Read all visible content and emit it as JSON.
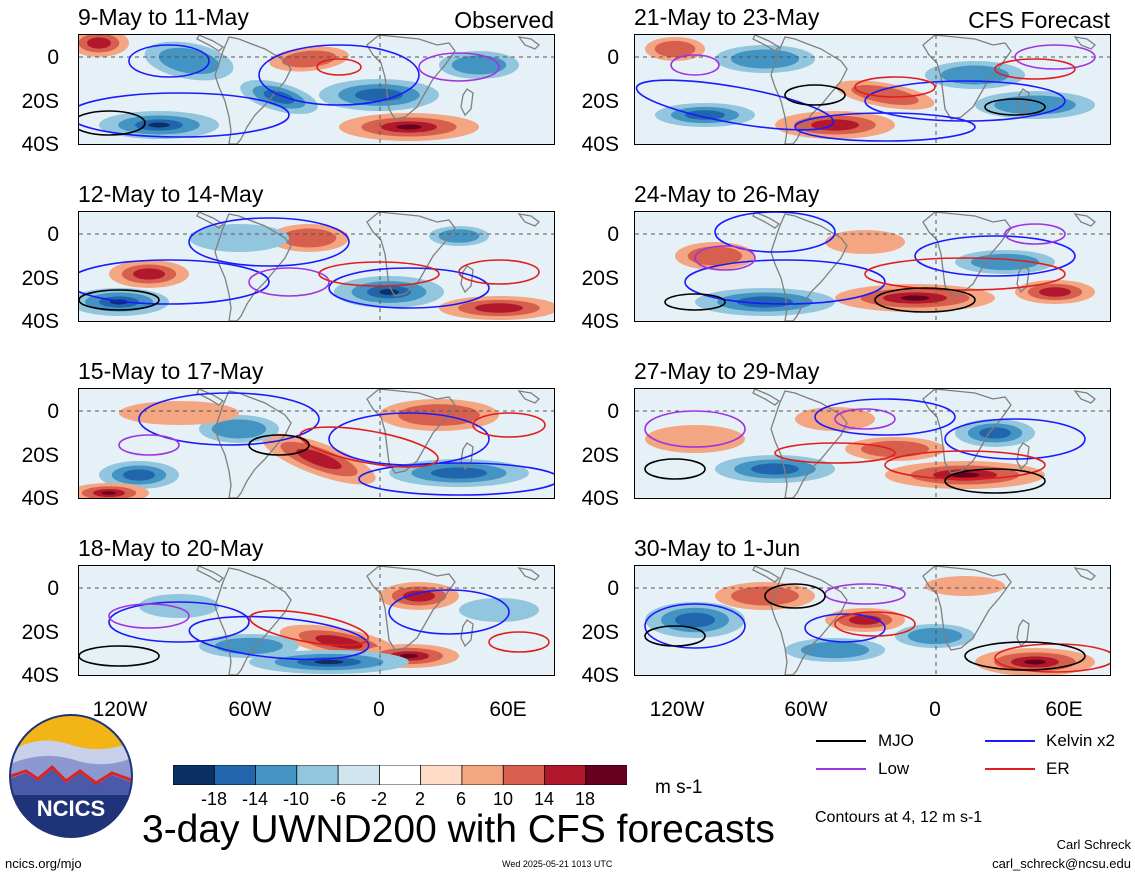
{
  "colors": {
    "mjo": "#000000",
    "kelvin": "#1a1aff",
    "low": "#a033e0",
    "er": "#e01e1e",
    "land": "#7f7f7f",
    "equator": "#555555"
  },
  "headers": {
    "left": "Observed",
    "right": "CFS Forecast"
  },
  "observed_panels": [
    {
      "title": "9-May to 11-May"
    },
    {
      "title": "12-May to 14-May"
    },
    {
      "title": "15-May to 17-May"
    },
    {
      "title": "18-May to 20-May"
    }
  ],
  "forecast_panels": [
    {
      "title": "21-May to 23-May"
    },
    {
      "title": "24-May to 26-May"
    },
    {
      "title": "27-May to 29-May"
    },
    {
      "title": "30-May to 1-Jun"
    }
  ],
  "lat_labels": [
    "0",
    "20S",
    "40S"
  ],
  "lon_labels": [
    "120W",
    "60W",
    "0",
    "60E"
  ],
  "colorbar": {
    "colors": [
      "#0a3064",
      "#2166ac",
      "#4393c3",
      "#92c5de",
      "#d1e5f0",
      "#ffffff",
      "#fddbc7",
      "#f4a582",
      "#d6604d",
      "#b2182b",
      "#67001f"
    ],
    "labels": [
      "-18",
      "-14",
      "-10",
      "-6",
      "-2",
      "2",
      "6",
      "10",
      "14",
      "18"
    ],
    "units": "m s-1"
  },
  "legend": {
    "mjo": "MJO",
    "kelvin": "Kelvin x2",
    "low": "Low",
    "er": "ER"
  },
  "contour_note": "Contours at 4, 12 m s-1",
  "main_title": "3-day UWND200 with CFS forecasts",
  "logo_text": "NCICS",
  "footer": {
    "url": "ncics.org/mjo",
    "timestamp": "Wed 2025-05-21 1013 UTC",
    "author": "Carl Schreck",
    "email": "carl_schreck@ncsu.edu"
  }
}
